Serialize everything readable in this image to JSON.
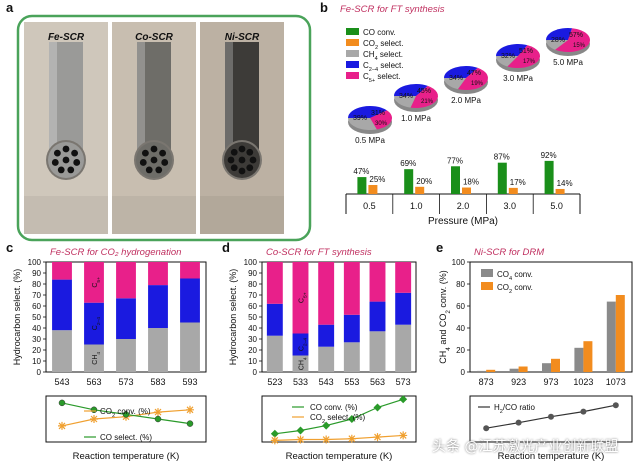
{
  "panel_letters": [
    "a",
    "b",
    "c",
    "d",
    "e"
  ],
  "panel_a": {
    "tubes": [
      {
        "label": "Fe-SCR",
        "color": "#9a9a98",
        "holes": 7
      },
      {
        "label": "Co-SCR",
        "color": "#6e6d68",
        "holes": 7
      },
      {
        "label": "Ni-SCR",
        "color": "#3d3b38",
        "holes": 8
      }
    ],
    "frame_color": "#4aa35a"
  },
  "colors": {
    "co_conv": "#1a8f1a",
    "co2_sel": "#f28c1e",
    "ch4": "#a8a8a8",
    "c24": "#1a1ae0",
    "c5": "#e8208a",
    "line_conv": "#f0a030",
    "line_green": "#2a9a2a",
    "bar_gray": "#8a8a8a",
    "bar_orange": "#f28c1e",
    "title_pink": "#c03060"
  },
  "chart_data": [
    {
      "panel": "b",
      "type": "bar",
      "title": "Fe-SCR for FT synthesis",
      "xlabel": "Pressure (MPa)",
      "categories": [
        "0.5",
        "1.0",
        "2.0",
        "3.0",
        "5.0"
      ],
      "series": [
        {
          "name": "CO conv.",
          "values": [
            47,
            69,
            77,
            87,
            92
          ]
        },
        {
          "name": "CO2 select.",
          "values": [
            25,
            20,
            18,
            17,
            14
          ]
        }
      ],
      "legend": [
        "CO conv.",
        "CO2 select.",
        "CH4 select.",
        "C2-4 select.",
        "C5+ select."
      ],
      "pies": [
        {
          "label": "0.5 MPa",
          "c24": 39,
          "c5": 31,
          "ch4": 30
        },
        {
          "label": "1.0 MPa",
          "c24": 34,
          "c5": 45,
          "ch4": 21
        },
        {
          "label": "2.0 MPa",
          "c24": 34,
          "c5": 47,
          "ch4": 19
        },
        {
          "label": "3.0 MPa",
          "c24": 32,
          "c5": 51,
          "ch4": 17
        },
        {
          "label": "5.0 MPa",
          "c24": 28,
          "c5": 57,
          "ch4": 15
        }
      ]
    },
    {
      "panel": "c",
      "type": "bar",
      "title": "Fe-SCR for CO2 hydrogenation",
      "ylabel": "Hydrocarbon select. (%)",
      "ylim": [
        0,
        100
      ],
      "xlabel": "Reaction temperature (K)",
      "categories": [
        "543",
        "563",
        "573",
        "583",
        "593"
      ],
      "series": [
        {
          "name": "CH4",
          "values": [
            38,
            25,
            30,
            40,
            45
          ]
        },
        {
          "name": "C2-4",
          "values": [
            46,
            38,
            37,
            39,
            40
          ]
        },
        {
          "name": "C5+",
          "values": [
            16,
            37,
            33,
            21,
            15
          ]
        }
      ],
      "bar_labels": {
        "ch4": "CH4",
        "c24": "C2-4",
        "c5": "C5+"
      },
      "lines": [
        {
          "name": "CO2 conv. (%)",
          "values": [
            14,
            20,
            22,
            26,
            28
          ]
        },
        {
          "name": "CO select. (%)",
          "values": [
            34,
            28,
            24,
            20,
            16
          ]
        }
      ]
    },
    {
      "panel": "d",
      "type": "bar",
      "title": "Co-SCR for FT synthesis",
      "ylabel": "Hydrocarbon select. (%)",
      "ylim": [
        0,
        100
      ],
      "xlabel": "Reaction temperature (K)",
      "categories": [
        "523",
        "533",
        "543",
        "553",
        "563",
        "573"
      ],
      "series": [
        {
          "name": "CH4",
          "values": [
            33,
            15,
            23,
            27,
            37,
            43
          ]
        },
        {
          "name": "C2-4",
          "values": [
            29,
            20,
            20,
            25,
            27,
            29
          ]
        },
        {
          "name": "C5+",
          "values": [
            38,
            65,
            57,
            48,
            36,
            28
          ]
        }
      ],
      "bar_labels": {
        "ch4": "CH4",
        "c24": "C2-4",
        "c5": "C5+"
      },
      "lines": [
        {
          "name": "CO conv. (%)",
          "values": [
            10,
            14,
            20,
            28,
            42,
            52
          ]
        },
        {
          "name": "CO2 select. (%)",
          "values": [
            2,
            3,
            3,
            4,
            6,
            8
          ]
        }
      ]
    },
    {
      "panel": "e",
      "type": "bar",
      "title": "Ni-SCR for DRM",
      "ylabel": "CH4 and CO2 conv. (%)",
      "ylim": [
        0,
        100
      ],
      "xlabel": "Reaction temperature (K)",
      "categories": [
        "873",
        "923",
        "973",
        "1023",
        "1073"
      ],
      "series": [
        {
          "name": "CH4 conv.",
          "values": [
            1,
            3,
            8,
            22,
            64
          ]
        },
        {
          "name": "CO2 conv.",
          "values": [
            2,
            5,
            12,
            28,
            70
          ]
        }
      ],
      "yticks": [
        0,
        20,
        40,
        60,
        80,
        100
      ],
      "lines": [
        {
          "name": "H2/CO ratio",
          "values": [
            0.3,
            0.42,
            0.55,
            0.66,
            0.8
          ]
        }
      ],
      "line_ylim": [
        0,
        1.0
      ]
    }
  ],
  "watermark": "头条 @江苏激光产业创新联盟"
}
